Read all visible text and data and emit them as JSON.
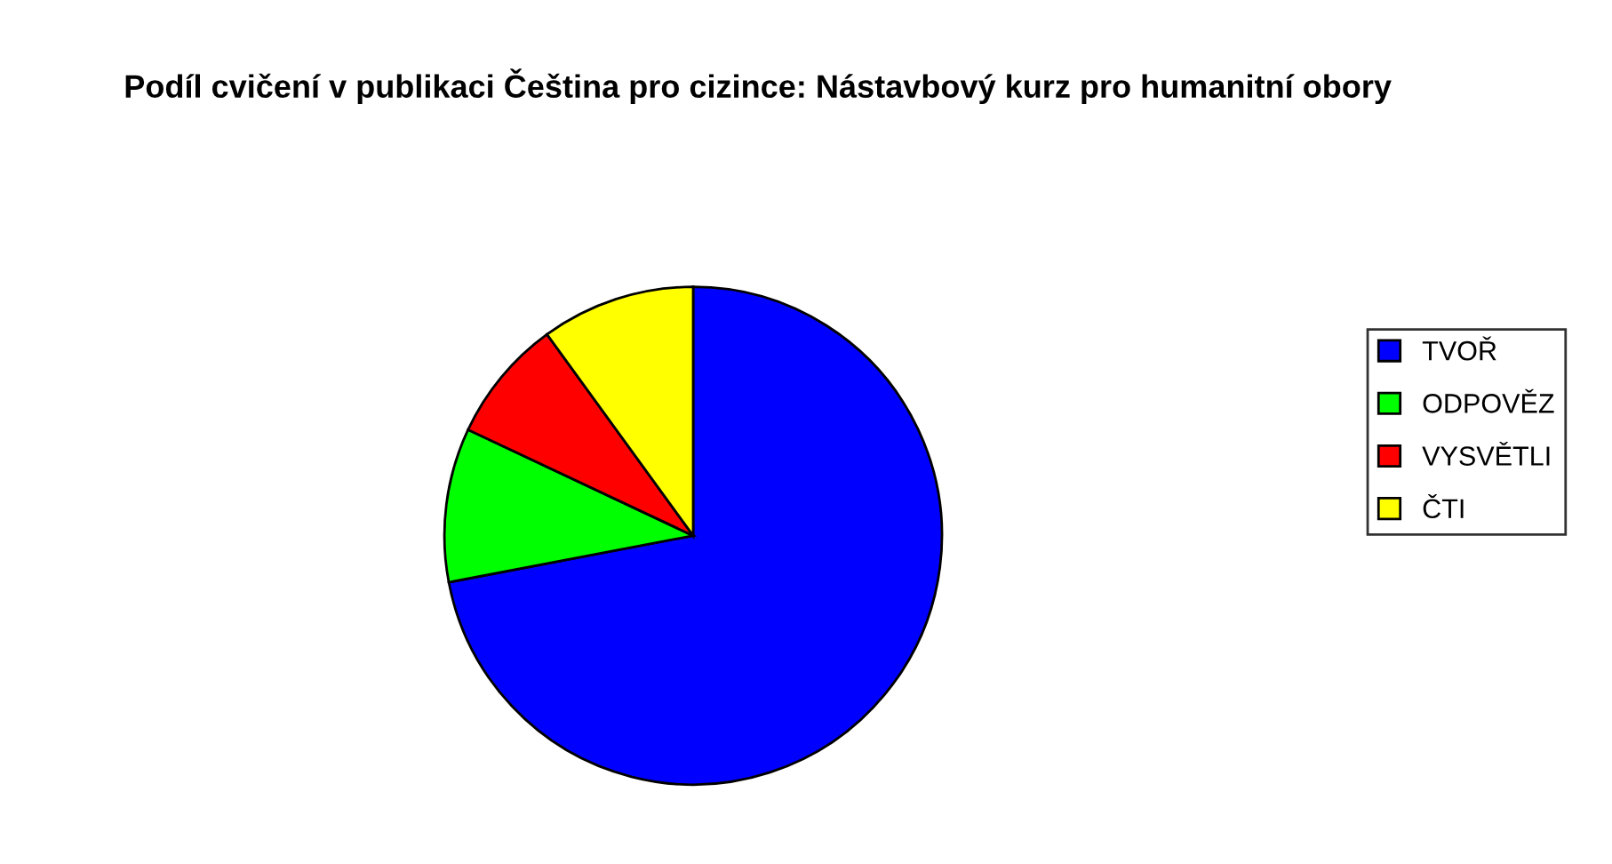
{
  "chart_data": {
    "type": "pie",
    "title": "Podíl cvičení v publikaci Čeština pro cizince: Nástavbový kurz pro humanitní obory",
    "categories": [
      "TVOŘ",
      "ODPOVĚZ",
      "VYSVĚTLI",
      "ČTI"
    ],
    "values": [
      72,
      10,
      8,
      10
    ],
    "colors": [
      "#0000ff",
      "#00ff00",
      "#ff0000",
      "#ffff00"
    ],
    "legend": "right"
  }
}
